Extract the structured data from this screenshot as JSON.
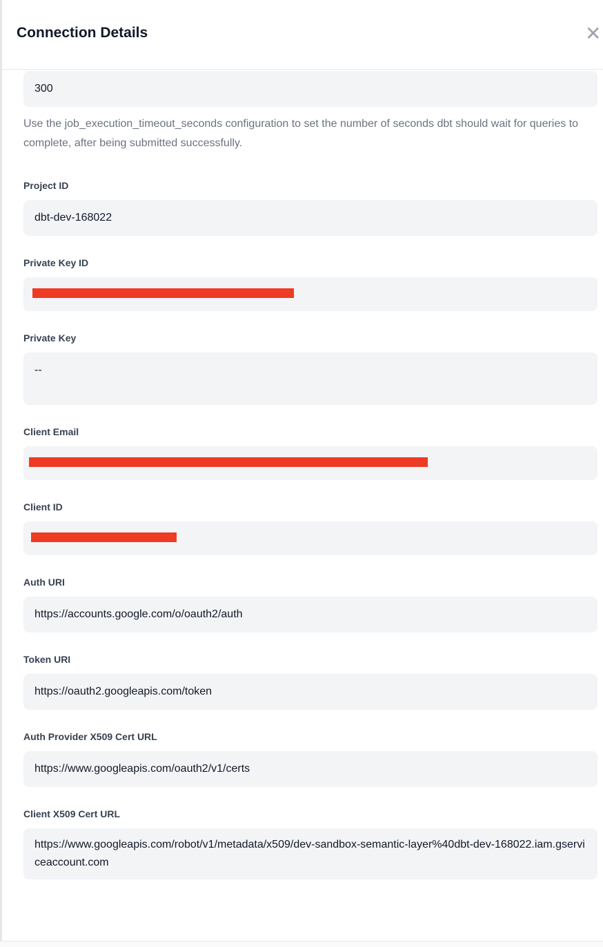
{
  "header": {
    "title": "Connection Details",
    "close_icon": "close-icon"
  },
  "timeout": {
    "value": "300",
    "help": "Use the job_execution_timeout_seconds configuration to set the number of seconds dbt should wait for queries to complete, after being submitted successfully."
  },
  "fields": [
    {
      "label": "Project ID",
      "value": "dbt-dev-168022"
    },
    {
      "label": "Private Key ID",
      "value": ""
    },
    {
      "label": "Private Key",
      "value": "--"
    },
    {
      "label": "Client Email",
      "value": ""
    },
    {
      "label": "Client ID",
      "value": ""
    },
    {
      "label": "Auth URI",
      "value": "https://accounts.google.com/o/oauth2/auth"
    },
    {
      "label": "Token URI",
      "value": "https://oauth2.googleapis.com/token"
    },
    {
      "label": "Auth Provider X509 Cert URL",
      "value": "https://www.googleapis.com/oauth2/v1/certs"
    },
    {
      "label": "Client X509 Cert URL",
      "value": "https://www.googleapis.com/robot/v1/metadata/x509/dev-sandbox-semantic-layer%40dbt-dev-168022.iam.gserviceaccount.com"
    }
  ],
  "colors": {
    "redaction": "#ee3b24",
    "input_bg": "#f3f4f6"
  }
}
